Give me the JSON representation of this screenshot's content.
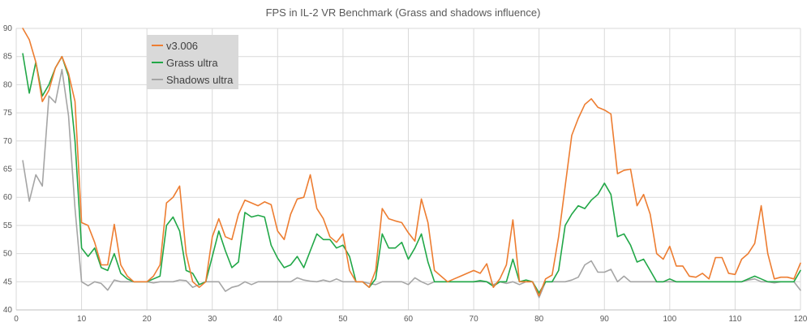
{
  "chart_data": {
    "type": "line",
    "title": "FPS in IL-2 VR Benchmark (Grass and shadows influence)",
    "xlim": [
      0,
      120
    ],
    "ylim": [
      40,
      90
    ],
    "x_ticks": [
      0,
      10,
      20,
      30,
      40,
      50,
      60,
      70,
      80,
      90,
      100,
      110,
      120
    ],
    "y_ticks": [
      40,
      45,
      50,
      55,
      60,
      65,
      70,
      75,
      80,
      85,
      90
    ],
    "grid": true,
    "legend_position": "top-left",
    "series": [
      {
        "name": "v3.006",
        "color": "#ED7D31",
        "x": [
          1,
          2,
          3,
          4,
          5,
          6,
          7,
          8,
          9,
          10,
          11,
          12,
          13,
          14,
          15,
          16,
          17,
          18,
          19,
          20,
          21,
          22,
          23,
          24,
          25,
          26,
          27,
          28,
          29,
          30,
          31,
          32,
          33,
          34,
          35,
          36,
          37,
          38,
          39,
          40,
          41,
          42,
          43,
          44,
          45,
          46,
          47,
          48,
          49,
          50,
          51,
          52,
          53,
          54,
          55,
          56,
          57,
          58,
          59,
          60,
          61,
          62,
          63,
          64,
          65,
          66,
          67,
          68,
          69,
          70,
          71,
          72,
          73,
          74,
          75,
          76,
          77,
          78,
          79,
          80,
          81,
          82,
          83,
          84,
          85,
          86,
          87,
          88,
          89,
          90,
          91,
          92,
          93,
          94,
          95,
          96,
          97,
          98,
          99,
          100,
          101,
          102,
          103,
          104,
          105,
          106,
          107,
          108,
          109,
          110,
          111,
          112,
          113,
          114,
          115,
          116,
          117,
          118,
          119,
          120
        ],
        "y": [
          90,
          88,
          84,
          77,
          79,
          83,
          85,
          82,
          77,
          55.5,
          55,
          52,
          48,
          48,
          55.2,
          48,
          46,
          45,
          45,
          45,
          46,
          48,
          59,
          60,
          62,
          50,
          45,
          44,
          45,
          53,
          56.2,
          53,
          52.5,
          57,
          59.5,
          59,
          58.5,
          59.2,
          58.7,
          54,
          52.5,
          57,
          59.7,
          60,
          64,
          58,
          56.2,
          53,
          52,
          53.5,
          47,
          45,
          45,
          44,
          47,
          58,
          56.2,
          55.8,
          55.5,
          53.7,
          52.2,
          59.7,
          55.5,
          47,
          46,
          45,
          45.5,
          46,
          46.5,
          47,
          46.5,
          48.2,
          44,
          45.5,
          48,
          56,
          45,
          45,
          45,
          42.5,
          45.5,
          46.2,
          53,
          62,
          71,
          74,
          76.5,
          77.5,
          76,
          75.5,
          74.8,
          64.2,
          64.8,
          65,
          58.5,
          60.5,
          57,
          50,
          49,
          51.3,
          47.8,
          47.8,
          46,
          45.8,
          46.5,
          45.5,
          49.3,
          49.3,
          46.5,
          46.3,
          49,
          50,
          51.8,
          58.5,
          50,
          45.5,
          45.8,
          45.8,
          45.5,
          48.3
        ]
      },
      {
        "name": "Grass ultra",
        "color": "#21A747",
        "x": [
          1,
          2,
          3,
          4,
          5,
          6,
          7,
          8,
          9,
          10,
          11,
          12,
          13,
          14,
          15,
          16,
          17,
          18,
          19,
          20,
          21,
          22,
          23,
          24,
          25,
          26,
          27,
          28,
          29,
          30,
          31,
          32,
          33,
          34,
          35,
          36,
          37,
          38,
          39,
          40,
          41,
          42,
          43,
          44,
          45,
          46,
          47,
          48,
          49,
          50,
          51,
          52,
          53,
          54,
          55,
          56,
          57,
          58,
          59,
          60,
          61,
          62,
          63,
          64,
          65,
          66,
          67,
          68,
          69,
          70,
          71,
          72,
          73,
          74,
          75,
          76,
          77,
          78,
          79,
          80,
          81,
          82,
          83,
          84,
          85,
          86,
          87,
          88,
          89,
          90,
          91,
          92,
          93,
          94,
          95,
          96,
          97,
          98,
          99,
          100,
          101,
          102,
          103,
          104,
          105,
          106,
          107,
          108,
          109,
          110,
          111,
          112,
          113,
          114,
          115,
          116,
          117,
          118,
          119,
          120
        ],
        "y": [
          85.5,
          78.5,
          84,
          78,
          80,
          83,
          85,
          81.5,
          70,
          51,
          49.5,
          51,
          47.5,
          47,
          50,
          46.5,
          45.5,
          45,
          45,
          45,
          45.5,
          46,
          55,
          56.5,
          54,
          47,
          46.5,
          44.5,
          45,
          49.5,
          54,
          50.5,
          47.5,
          48.5,
          57.3,
          56.5,
          56.8,
          56.5,
          51.5,
          49.2,
          47.5,
          48,
          49.5,
          47.5,
          50.5,
          53.5,
          52.5,
          52.5,
          51,
          51.5,
          49.5,
          45,
          45,
          44,
          45.5,
          53.5,
          51,
          51,
          52,
          49,
          51,
          53.5,
          48.5,
          45,
          45,
          45,
          45,
          45,
          45,
          45,
          45.2,
          45,
          44.2,
          45,
          45,
          49,
          45,
          45.3,
          45,
          43,
          45,
          45,
          47,
          55,
          57,
          58.5,
          58,
          59.5,
          60.5,
          62.5,
          60.5,
          53,
          53.5,
          51.5,
          48.5,
          49,
          47,
          45,
          45,
          45.5,
          45,
          45,
          45,
          45,
          45,
          45,
          45,
          45,
          45,
          45,
          45,
          45.5,
          46,
          45.5,
          45,
          45,
          45,
          45,
          45,
          47
        ]
      },
      {
        "name": "Shadows ultra",
        "color": "#A5A5A5",
        "x": [
          1,
          2,
          3,
          4,
          5,
          6,
          7,
          8,
          9,
          10,
          11,
          12,
          13,
          14,
          15,
          16,
          17,
          18,
          19,
          20,
          21,
          22,
          23,
          24,
          25,
          26,
          27,
          28,
          29,
          30,
          31,
          32,
          33,
          34,
          35,
          36,
          37,
          38,
          39,
          40,
          41,
          42,
          43,
          44,
          45,
          46,
          47,
          48,
          49,
          50,
          51,
          52,
          53,
          54,
          55,
          56,
          57,
          58,
          59,
          60,
          61,
          62,
          63,
          64,
          65,
          66,
          67,
          68,
          69,
          70,
          71,
          72,
          73,
          74,
          75,
          76,
          77,
          78,
          79,
          80,
          81,
          82,
          83,
          84,
          85,
          86,
          87,
          88,
          89,
          90,
          91,
          92,
          93,
          94,
          95,
          96,
          97,
          98,
          99,
          100,
          101,
          102,
          103,
          104,
          105,
          106,
          107,
          108,
          109,
          110,
          111,
          112,
          113,
          114,
          115,
          116,
          117,
          118,
          119,
          120
        ],
        "y": [
          66.5,
          59.3,
          64,
          62,
          78,
          76.8,
          82.7,
          74.5,
          58,
          45,
          44.3,
          45,
          44.7,
          43.5,
          45.3,
          45,
          45,
          45,
          45,
          45,
          44.8,
          45,
          45,
          45,
          45.3,
          45.2,
          44,
          44.5,
          45,
          45,
          45,
          43.3,
          44,
          44.3,
          45,
          44.5,
          45,
          45,
          45,
          45,
          45,
          45,
          45.7,
          45.3,
          45.1,
          45,
          45.3,
          45,
          45.5,
          45,
          45,
          45,
          45,
          44.7,
          44.5,
          45,
          45,
          45,
          45,
          44.5,
          45.7,
          45,
          44.5,
          45,
          45,
          45,
          45,
          45,
          45,
          45,
          45,
          45,
          44.5,
          45,
          44.7,
          45,
          44.5,
          45,
          45,
          42.2,
          45,
          45,
          45,
          45,
          45.3,
          45.8,
          48,
          48.7,
          46.7,
          46.7,
          47.2,
          45,
          46,
          45,
          45,
          45,
          45,
          45,
          45,
          45,
          45,
          45,
          45,
          45,
          45,
          45,
          45,
          45,
          45,
          45,
          45,
          45.3,
          45.5,
          45,
          45,
          44.8,
          45,
          45,
          45,
          43.5
        ]
      }
    ]
  }
}
